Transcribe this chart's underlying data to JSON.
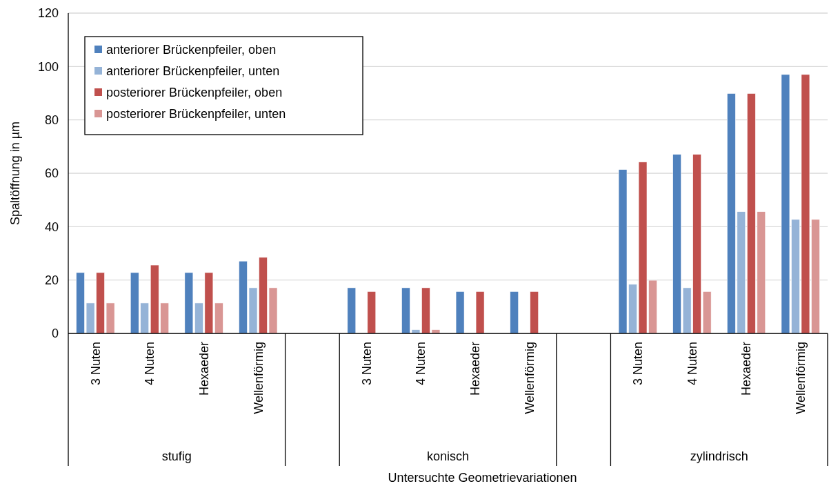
{
  "chart_data": {
    "type": "bar",
    "xlabel": "Untersuchte Geometrievariationen",
    "ylabel": "Spaltöffnung in µm",
    "categories": [
      "3 Nuten",
      "4 Nuten",
      "Hexaeder",
      "Wellenförmig",
      null,
      "3 Nuten",
      "4 Nuten",
      "Hexaeder",
      "Wellenförmig",
      null,
      "3 Nuten",
      "4 Nuten",
      "Hexaeder",
      "Wellenförmig"
    ],
    "annotations": [
      "stufig",
      "konisch",
      "zylindrisch"
    ],
    "series": [
      {
        "name": "anteriorer Brückenpfeiler, oben",
        "color": "#4f81bd",
        "values": [
          22.8,
          22.8,
          22.8,
          27.1,
          null,
          17.1,
          17.1,
          15.7,
          15.7,
          null,
          61.4,
          67.1,
          89.9,
          97.0
        ]
      },
      {
        "name": "anteriorer Brückenpfeiler, unten",
        "color": "#95b3d7",
        "values": [
          11.4,
          11.4,
          11.4,
          17.1,
          null,
          null,
          1.4,
          null,
          null,
          null,
          18.4,
          17.1,
          45.6,
          42.7
        ]
      },
      {
        "name": "posteriorer Brückenpfeiler, oben",
        "color": "#c0504d",
        "values": [
          22.8,
          25.6,
          22.8,
          28.5,
          null,
          15.7,
          17.1,
          15.7,
          15.7,
          null,
          64.2,
          67.1,
          89.9,
          97.0
        ]
      },
      {
        "name": "posteriorer Brückenpfeiler, unten",
        "color": "#d99694",
        "values": [
          11.4,
          11.4,
          11.4,
          17.1,
          null,
          null,
          1.4,
          null,
          null,
          null,
          19.9,
          15.7,
          45.6,
          42.7
        ]
      }
    ],
    "ylim": [
      0,
      120
    ],
    "yticks": [
      0,
      20,
      40,
      60,
      80,
      100,
      120
    ],
    "grid": "y",
    "legend": "top left"
  }
}
